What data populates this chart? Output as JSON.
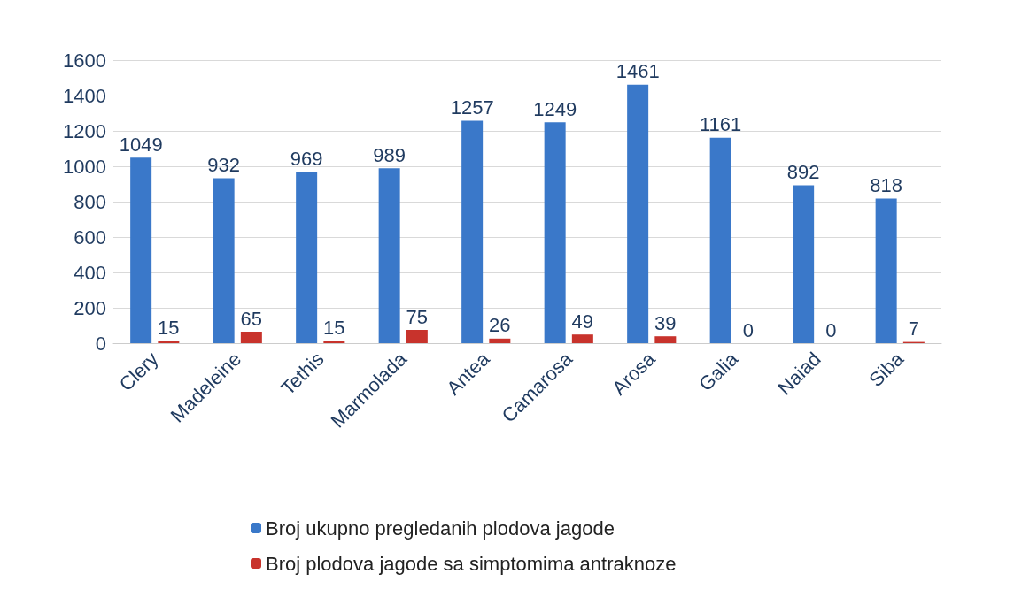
{
  "chart_data": {
    "type": "bar",
    "categories": [
      "Clery",
      "Madeleine",
      "Tethis",
      "Marmolada",
      "Antea",
      "Camarosa",
      "Arosa",
      "Galia",
      "Naiad",
      "Siba"
    ],
    "series": [
      {
        "name": "Broj ukupno pregledanih plodova jagode",
        "color": "#3a78c9",
        "values": [
          1049,
          932,
          969,
          989,
          1257,
          1249,
          1461,
          1161,
          892,
          818
        ]
      },
      {
        "name": "Broj plodova jagode sa simptomima antraknoze",
        "color": "#c8332c",
        "values": [
          15,
          65,
          15,
          75,
          26,
          49,
          39,
          0,
          0,
          7
        ]
      }
    ],
    "ylim": [
      0,
      1600
    ],
    "yticks": [
      0,
      200,
      400,
      600,
      800,
      1000,
      1200,
      1400,
      1600
    ],
    "grid": "y",
    "legend": "bottom",
    "data_labels": true
  }
}
